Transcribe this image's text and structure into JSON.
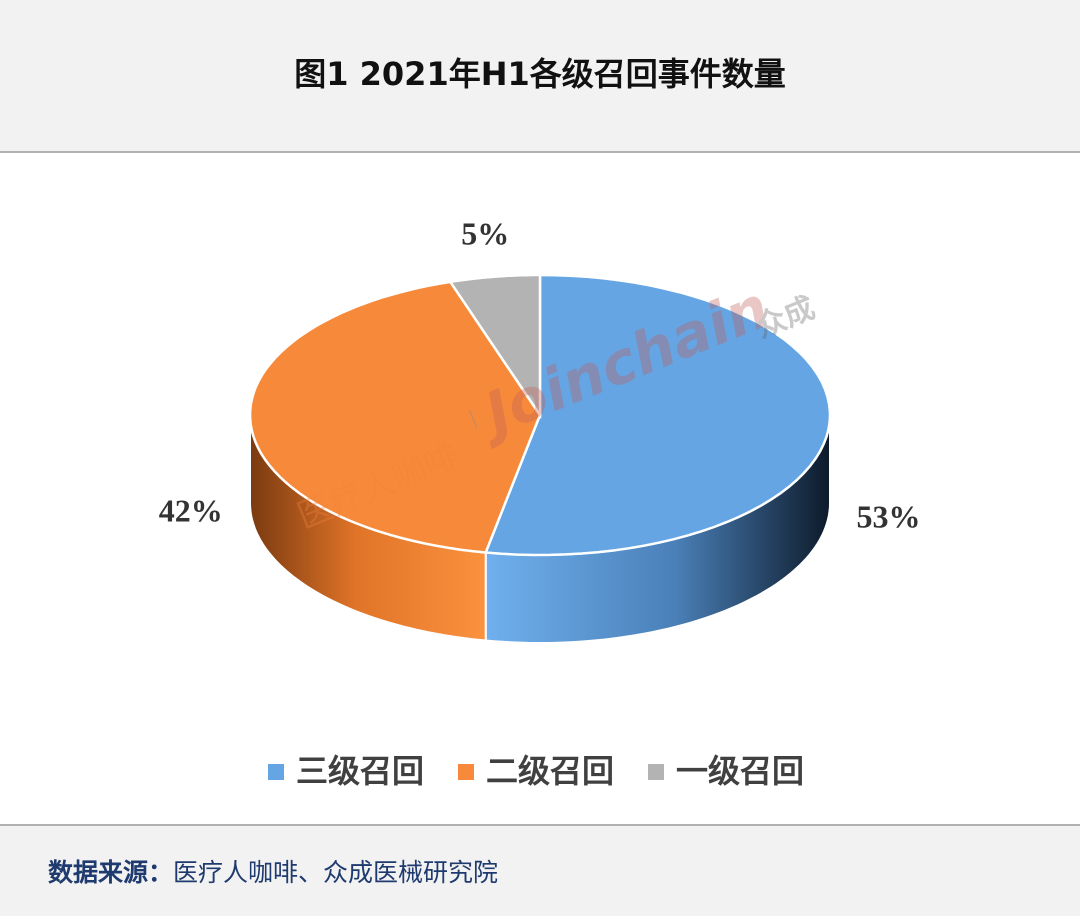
{
  "chart_data": {
    "type": "pie3d",
    "title": "图1 2021年H1各级召回事件数量",
    "categories": [
      "三级召回",
      "二级召回",
      "一级召回"
    ],
    "values": [
      53,
      42,
      5
    ],
    "value_labels": [
      "53%",
      "42%",
      "5%"
    ],
    "colors": [
      "#65a5e4",
      "#f78a3a",
      "#b3b3b3"
    ],
    "legend": "bottom"
  },
  "watermark": {
    "brand_cn": "医疗人咖啡",
    "brand_en": "Joinchain",
    "brand_cn2": "众成"
  },
  "footer": {
    "source_label": "数据来源：",
    "source_text": "医疗人咖啡、众成医械研究院"
  }
}
